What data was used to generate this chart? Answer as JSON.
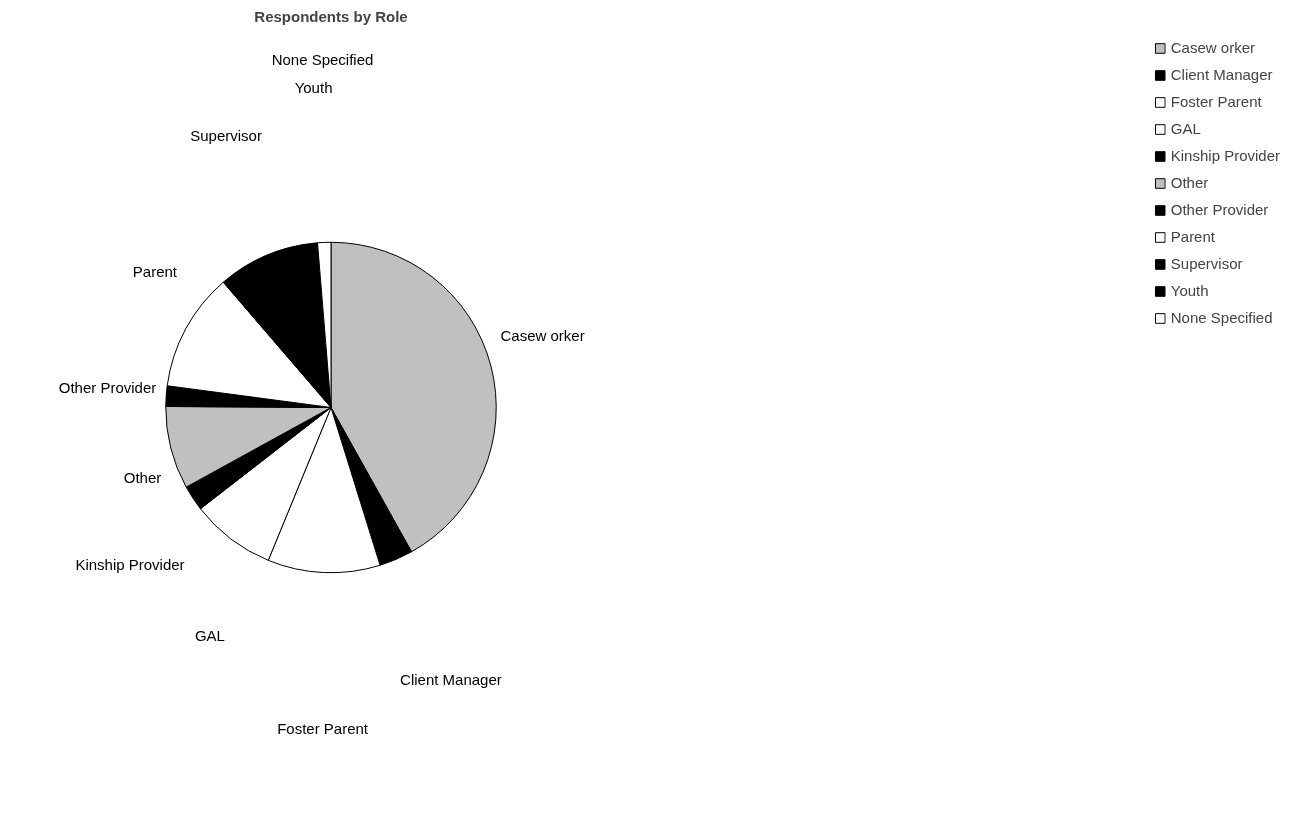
{
  "chart_data": {
    "type": "pie",
    "title": "Respondents by Role",
    "categories": [
      "Casew orker",
      "Client Manager",
      "Foster Parent",
      "GAL",
      "Kinship Provider",
      "Other",
      "Other Provider",
      "Parent",
      "Supervisor",
      "Youth",
      "None Specified"
    ],
    "values": [
      41.9,
      3.3,
      11,
      8.3,
      2.5,
      8.1,
      2,
      11.6,
      9.7,
      0.3,
      1.3
    ],
    "colors": [
      "#c0c0c0",
      "#000000",
      "#ffffff",
      "#ffffff",
      "#000000",
      "#c0c0c0",
      "#000000",
      "#ffffff",
      "#000000",
      "#000000",
      "#ffffff"
    ],
    "legend": "right"
  }
}
